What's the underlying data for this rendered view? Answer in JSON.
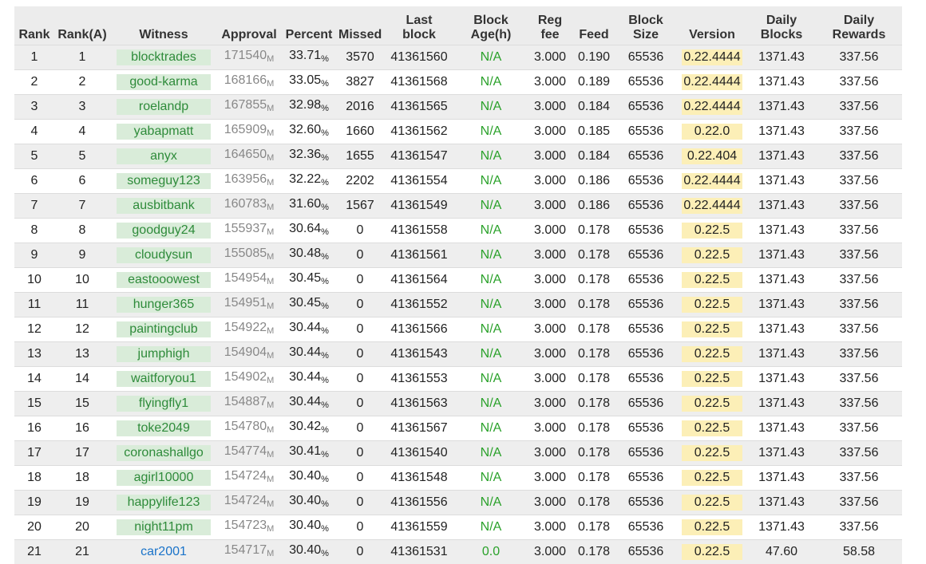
{
  "colors": {
    "witness_bg": "#d9ecd9",
    "witness_text": "#2e8b3a",
    "link_blue": "#1a73c9",
    "version_bg": "#fcefb7",
    "age_green": "#2aa12a",
    "header_bg": "#ececec",
    "stripe": "#eeeeee"
  },
  "headers": [
    {
      "l1": "",
      "l2": "Rank"
    },
    {
      "l1": "",
      "l2": "Rank(A)"
    },
    {
      "l1": "",
      "l2": "Witness"
    },
    {
      "l1": "",
      "l2": "Approval"
    },
    {
      "l1": "",
      "l2": "Percent"
    },
    {
      "l1": "",
      "l2": "Missed"
    },
    {
      "l1": "Last",
      "l2": "block"
    },
    {
      "l1": "Block",
      "l2": "Age(h)"
    },
    {
      "l1": "Reg",
      "l2": "fee"
    },
    {
      "l1": "",
      "l2": "Feed"
    },
    {
      "l1": "Block",
      "l2": "Size"
    },
    {
      "l1": "",
      "l2": "Version"
    },
    {
      "l1": "Daily",
      "l2": "Blocks"
    },
    {
      "l1": "Daily",
      "l2": "Rewards"
    }
  ],
  "units": {
    "approval": "M",
    "percent": "%"
  },
  "rows": [
    {
      "rank": "1",
      "rank_a": "1",
      "witness": "blocktrades",
      "approval": "171540",
      "percent": "33.71",
      "missed": "3570",
      "last_block": "41361560",
      "age": "N/A",
      "reg_fee": "3.000",
      "feed": "0.190",
      "size": "65536",
      "version": "0.22.4444",
      "daily_blocks": "1371.43",
      "daily_rewards": "337.56"
    },
    {
      "rank": "2",
      "rank_a": "2",
      "witness": "good-karma",
      "approval": "168166",
      "percent": "33.05",
      "missed": "3827",
      "last_block": "41361568",
      "age": "N/A",
      "reg_fee": "3.000",
      "feed": "0.189",
      "size": "65536",
      "version": "0.22.4444",
      "daily_blocks": "1371.43",
      "daily_rewards": "337.56"
    },
    {
      "rank": "3",
      "rank_a": "3",
      "witness": "roelandp",
      "approval": "167855",
      "percent": "32.98",
      "missed": "2016",
      "last_block": "41361565",
      "age": "N/A",
      "reg_fee": "3.000",
      "feed": "0.184",
      "size": "65536",
      "version": "0.22.4444",
      "daily_blocks": "1371.43",
      "daily_rewards": "337.56"
    },
    {
      "rank": "4",
      "rank_a": "4",
      "witness": "yabapmatt",
      "approval": "165909",
      "percent": "32.60",
      "missed": "1660",
      "last_block": "41361562",
      "age": "N/A",
      "reg_fee": "3.000",
      "feed": "0.185",
      "size": "65536",
      "version": "0.22.0",
      "daily_blocks": "1371.43",
      "daily_rewards": "337.56"
    },
    {
      "rank": "5",
      "rank_a": "5",
      "witness": "anyx",
      "approval": "164650",
      "percent": "32.36",
      "missed": "1655",
      "last_block": "41361547",
      "age": "N/A",
      "reg_fee": "3.000",
      "feed": "0.184",
      "size": "65536",
      "version": "0.22.404",
      "daily_blocks": "1371.43",
      "daily_rewards": "337.56"
    },
    {
      "rank": "6",
      "rank_a": "6",
      "witness": "someguy123",
      "approval": "163956",
      "percent": "32.22",
      "missed": "2202",
      "last_block": "41361554",
      "age": "N/A",
      "reg_fee": "3.000",
      "feed": "0.186",
      "size": "65536",
      "version": "0.22.4444",
      "daily_blocks": "1371.43",
      "daily_rewards": "337.56"
    },
    {
      "rank": "7",
      "rank_a": "7",
      "witness": "ausbitbank",
      "approval": "160783",
      "percent": "31.60",
      "missed": "1567",
      "last_block": "41361549",
      "age": "N/A",
      "reg_fee": "3.000",
      "feed": "0.186",
      "size": "65536",
      "version": "0.22.4444",
      "daily_blocks": "1371.43",
      "daily_rewards": "337.56"
    },
    {
      "rank": "8",
      "rank_a": "8",
      "witness": "goodguy24",
      "approval": "155937",
      "percent": "30.64",
      "missed": "0",
      "last_block": "41361558",
      "age": "N/A",
      "reg_fee": "3.000",
      "feed": "0.178",
      "size": "65536",
      "version": "0.22.5",
      "daily_blocks": "1371.43",
      "daily_rewards": "337.56"
    },
    {
      "rank": "9",
      "rank_a": "9",
      "witness": "cloudysun",
      "approval": "155085",
      "percent": "30.48",
      "missed": "0",
      "last_block": "41361561",
      "age": "N/A",
      "reg_fee": "3.000",
      "feed": "0.178",
      "size": "65536",
      "version": "0.22.5",
      "daily_blocks": "1371.43",
      "daily_rewards": "337.56"
    },
    {
      "rank": "10",
      "rank_a": "10",
      "witness": "eastooowest",
      "approval": "154954",
      "percent": "30.45",
      "missed": "0",
      "last_block": "41361564",
      "age": "N/A",
      "reg_fee": "3.000",
      "feed": "0.178",
      "size": "65536",
      "version": "0.22.5",
      "daily_blocks": "1371.43",
      "daily_rewards": "337.56"
    },
    {
      "rank": "11",
      "rank_a": "11",
      "witness": "hunger365",
      "approval": "154951",
      "percent": "30.45",
      "missed": "0",
      "last_block": "41361552",
      "age": "N/A",
      "reg_fee": "3.000",
      "feed": "0.178",
      "size": "65536",
      "version": "0.22.5",
      "daily_blocks": "1371.43",
      "daily_rewards": "337.56"
    },
    {
      "rank": "12",
      "rank_a": "12",
      "witness": "paintingclub",
      "approval": "154922",
      "percent": "30.44",
      "missed": "0",
      "last_block": "41361566",
      "age": "N/A",
      "reg_fee": "3.000",
      "feed": "0.178",
      "size": "65536",
      "version": "0.22.5",
      "daily_blocks": "1371.43",
      "daily_rewards": "337.56"
    },
    {
      "rank": "13",
      "rank_a": "13",
      "witness": "jumphigh",
      "approval": "154904",
      "percent": "30.44",
      "missed": "0",
      "last_block": "41361543",
      "age": "N/A",
      "reg_fee": "3.000",
      "feed": "0.178",
      "size": "65536",
      "version": "0.22.5",
      "daily_blocks": "1371.43",
      "daily_rewards": "337.56"
    },
    {
      "rank": "14",
      "rank_a": "14",
      "witness": "waitforyou1",
      "approval": "154902",
      "percent": "30.44",
      "missed": "0",
      "last_block": "41361553",
      "age": "N/A",
      "reg_fee": "3.000",
      "feed": "0.178",
      "size": "65536",
      "version": "0.22.5",
      "daily_blocks": "1371.43",
      "daily_rewards": "337.56"
    },
    {
      "rank": "15",
      "rank_a": "15",
      "witness": "flyingfly1",
      "approval": "154887",
      "percent": "30.44",
      "missed": "0",
      "last_block": "41361563",
      "age": "N/A",
      "reg_fee": "3.000",
      "feed": "0.178",
      "size": "65536",
      "version": "0.22.5",
      "daily_blocks": "1371.43",
      "daily_rewards": "337.56"
    },
    {
      "rank": "16",
      "rank_a": "16",
      "witness": "toke2049",
      "approval": "154780",
      "percent": "30.42",
      "missed": "0",
      "last_block": "41361567",
      "age": "N/A",
      "reg_fee": "3.000",
      "feed": "0.178",
      "size": "65536",
      "version": "0.22.5",
      "daily_blocks": "1371.43",
      "daily_rewards": "337.56"
    },
    {
      "rank": "17",
      "rank_a": "17",
      "witness": "coronashallgo",
      "approval": "154774",
      "percent": "30.41",
      "missed": "0",
      "last_block": "41361540",
      "age": "N/A",
      "reg_fee": "3.000",
      "feed": "0.178",
      "size": "65536",
      "version": "0.22.5",
      "daily_blocks": "1371.43",
      "daily_rewards": "337.56"
    },
    {
      "rank": "18",
      "rank_a": "18",
      "witness": "agirl10000",
      "approval": "154724",
      "percent": "30.40",
      "missed": "0",
      "last_block": "41361548",
      "age": "N/A",
      "reg_fee": "3.000",
      "feed": "0.178",
      "size": "65536",
      "version": "0.22.5",
      "daily_blocks": "1371.43",
      "daily_rewards": "337.56"
    },
    {
      "rank": "19",
      "rank_a": "19",
      "witness": "happylife123",
      "approval": "154724",
      "percent": "30.40",
      "missed": "0",
      "last_block": "41361556",
      "age": "N/A",
      "reg_fee": "3.000",
      "feed": "0.178",
      "size": "65536",
      "version": "0.22.5",
      "daily_blocks": "1371.43",
      "daily_rewards": "337.56"
    },
    {
      "rank": "20",
      "rank_a": "20",
      "witness": "night11pm",
      "approval": "154723",
      "percent": "30.40",
      "missed": "0",
      "last_block": "41361559",
      "age": "N/A",
      "reg_fee": "3.000",
      "feed": "0.178",
      "size": "65536",
      "version": "0.22.5",
      "daily_blocks": "1371.43",
      "daily_rewards": "337.56"
    },
    {
      "rank": "21",
      "rank_a": "21",
      "witness": "car2001",
      "approval": "154717",
      "percent": "30.40",
      "missed": "0",
      "last_block": "41361531",
      "age": "0.0",
      "reg_fee": "3.000",
      "feed": "0.178",
      "size": "65536",
      "version": "0.22.5",
      "daily_blocks": "47.60",
      "daily_rewards": "58.58",
      "plain_link": true
    }
  ]
}
